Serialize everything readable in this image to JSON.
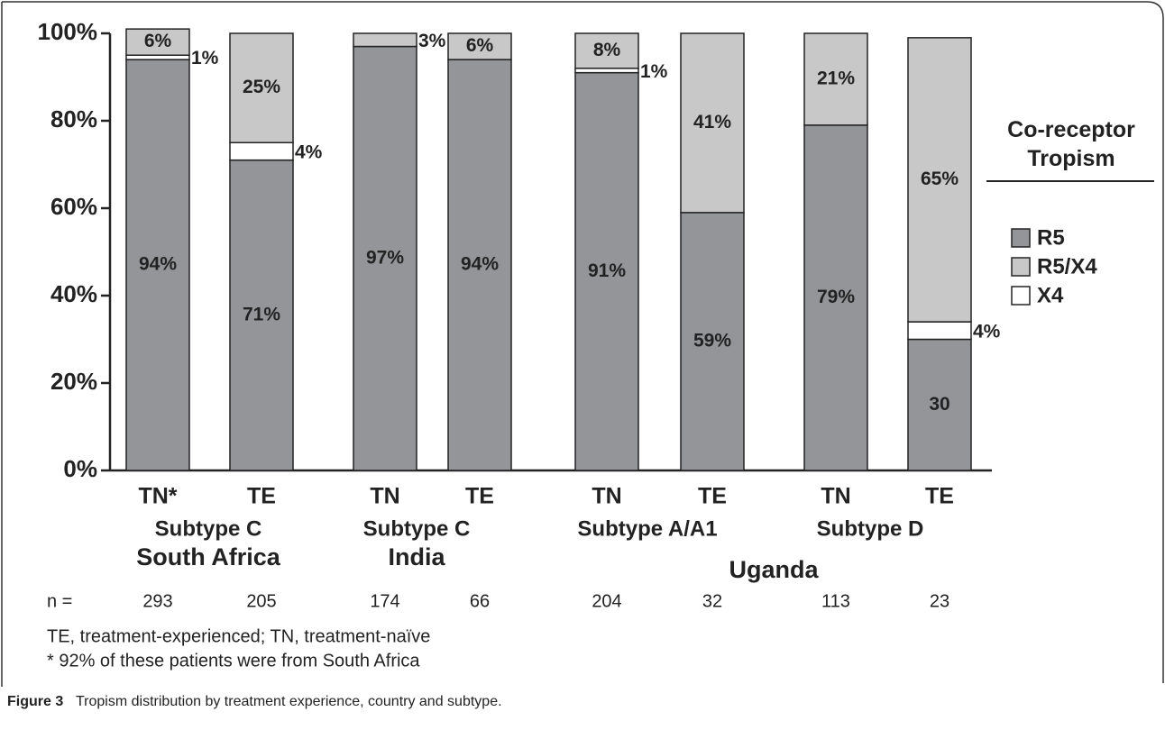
{
  "chart_data": {
    "type": "stacked_bar",
    "categories": [
      "TN*",
      "TE",
      "TN",
      "TE",
      "TN",
      "TE",
      "TN",
      "TE"
    ],
    "subtypes": [
      "Subtype C",
      "Subtype C",
      "Subtype A/A1",
      "Subtype D"
    ],
    "countries": [
      "South Africa",
      "India",
      "Uganda"
    ],
    "series": [
      {
        "name": "R5",
        "color": "#939598",
        "values": [
          94,
          71,
          97,
          94,
          91,
          59,
          79,
          30
        ],
        "value_labels": [
          "94%",
          "71%",
          "97%",
          "94%",
          "91%",
          "59%",
          "79%",
          "30"
        ]
      },
      {
        "name": "X4",
        "color": "#ffffff",
        "values": [
          1,
          4,
          null,
          null,
          1,
          null,
          null,
          4
        ],
        "value_labels": [
          "1%",
          "4%",
          null,
          null,
          "1%",
          null,
          null,
          "4%"
        ]
      },
      {
        "name": "R5/X4",
        "color": "#c8c8c8",
        "values": [
          6,
          25,
          3,
          6,
          8,
          41,
          21,
          65
        ],
        "value_labels": [
          "6%",
          "25%",
          "3%",
          "6%",
          "8%",
          "41%",
          "21%",
          "65%"
        ]
      }
    ],
    "legend_title": "Co-receptor Tropism",
    "legend_order": [
      0,
      2,
      1
    ],
    "ylim": [
      0,
      100
    ],
    "yticks": [
      {
        "value": 0,
        "label": "0%"
      },
      {
        "value": 20,
        "label": "20%"
      },
      {
        "value": 40,
        "label": "40%"
      },
      {
        "value": 60,
        "label": "60%"
      },
      {
        "value": 80,
        "label": "80%"
      },
      {
        "value": 100,
        "label": "100%"
      }
    ],
    "n_label": "n =",
    "n": [
      "293",
      "205",
      "174",
      "66",
      "204",
      "32",
      "113",
      "23"
    ],
    "footnotes": [
      "TE, treatment-experienced; TN, treatment-naïve",
      "* 92% of these patients were from South Africa"
    ],
    "caption_label": "Figure 3",
    "caption": "Tropism distribution by treatment experience, country and subtype."
  }
}
